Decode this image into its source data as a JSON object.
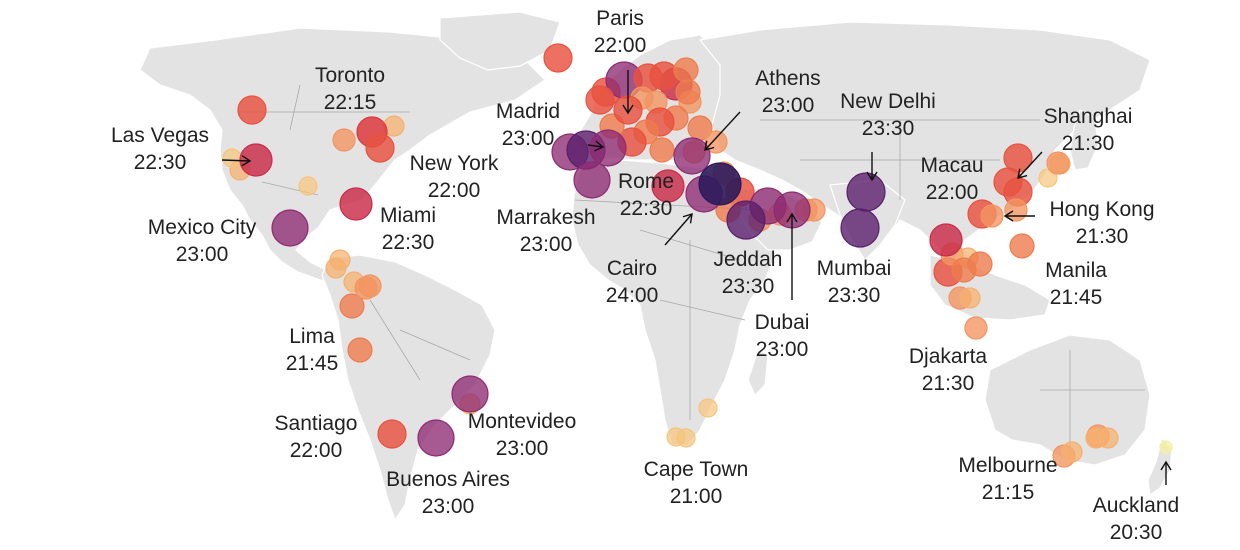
{
  "title": "",
  "legend": "none",
  "colors": {
    "land": "#e3e3e3",
    "borders": "#a9a9a9",
    "time_scale": {
      "20:30": "#f6f0a0",
      "21:00": "#f7c47a",
      "21:15": "#f6b06e",
      "21:30": "#f29560",
      "21:45": "#ee7c4e",
      "22:00": "#e8523f",
      "22:15": "#dc3a3d",
      "22:30": "#c92c48",
      "23:00": "#8e2a72",
      "23:30": "#5a1f6c",
      "24:00": "#2c1a5a"
    }
  },
  "labeled_cities": [
    {
      "name": "Paris",
      "time": "22:00"
    },
    {
      "name": "Toronto",
      "time": "22:15"
    },
    {
      "name": "Athens",
      "time": "23:00"
    },
    {
      "name": "Madrid",
      "time": "23:00"
    },
    {
      "name": "New Delhi",
      "time": "23:30"
    },
    {
      "name": "Shanghai",
      "time": "21:30"
    },
    {
      "name": "Las Vegas",
      "time": "22:30"
    },
    {
      "name": "New York",
      "time": "22:00"
    },
    {
      "name": "Macau",
      "time": "22:00"
    },
    {
      "name": "Rome",
      "time": "22:30"
    },
    {
      "name": "Hong Kong",
      "time": "21:30"
    },
    {
      "name": "Mexico City",
      "time": "23:00"
    },
    {
      "name": "Miami",
      "time": "22:30"
    },
    {
      "name": "Marrakesh",
      "time": "23:00"
    },
    {
      "name": "Jeddah",
      "time": "23:30"
    },
    {
      "name": "Cairo",
      "time": "24:00"
    },
    {
      "name": "Mumbai",
      "time": "23:30"
    },
    {
      "name": "Manila",
      "time": "21:45"
    },
    {
      "name": "Dubai",
      "time": "23:00"
    },
    {
      "name": "Lima",
      "time": "21:45"
    },
    {
      "name": "Djakarta",
      "time": "21:30"
    },
    {
      "name": "Santiago",
      "time": "22:00"
    },
    {
      "name": "Montevideo",
      "time": "23:00"
    },
    {
      "name": "Cape Town",
      "time": "21:00"
    },
    {
      "name": "Melbourne",
      "time": "21:15"
    },
    {
      "name": "Buenos Aires",
      "time": "23:00"
    },
    {
      "name": "Auckland",
      "time": "20:30"
    }
  ],
  "unlabeled_dot_times": [
    "22:00",
    "22:00",
    "22:30",
    "23:00",
    "22:00",
    "22:00",
    "21:45",
    "21:30",
    "21:30",
    "21:30",
    "21:45",
    "21:45",
    "21:30",
    "22:00",
    "21:45",
    "21:30",
    "22:00",
    "21:45",
    "21:45",
    "22:00",
    "21:45",
    "22:00",
    "21:30",
    "21:15",
    "21:15",
    "21:00",
    "21:00",
    "21:15",
    "21:15",
    "21:30",
    "21:45",
    "21:15",
    "21:30",
    "22:00",
    "21:30",
    "21:15",
    "21:45",
    "21:30",
    "21:15",
    "21:45",
    "22:00",
    "22:30",
    "22:00",
    "22:00",
    "21:15",
    "21:30",
    "21:00",
    "21:30",
    "22:00",
    "21:30",
    "21:30",
    "21:30",
    "21:30",
    "21:45",
    "21:30",
    "21:00",
    "21:00",
    "21:15",
    "21:15",
    "21:30",
    "21:15",
    "23:00",
    "23:30",
    "23:00",
    "23:00"
  ]
}
